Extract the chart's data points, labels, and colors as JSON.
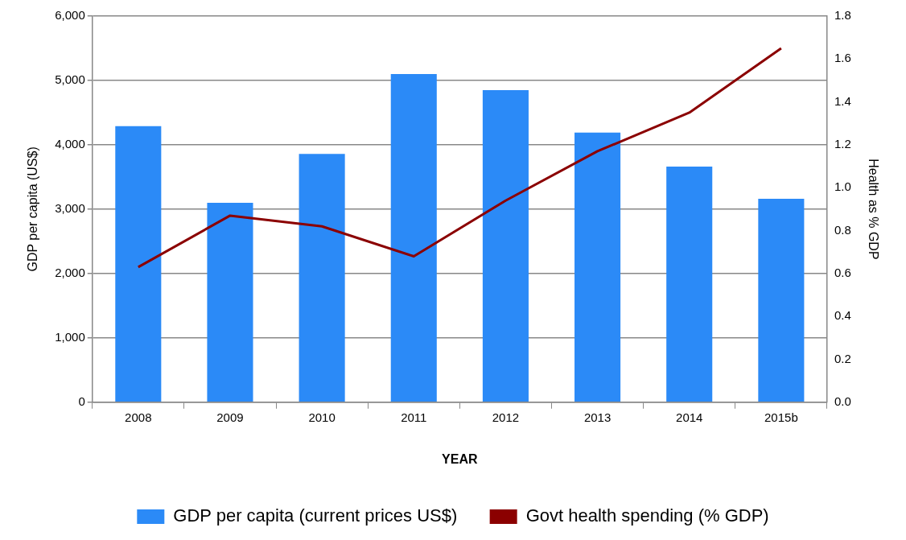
{
  "chart_data": {
    "type": "bar",
    "xlabel": "YEAR",
    "ylabel": "GDP per capita (US$)",
    "y2label": "Health as % GDP",
    "categories": [
      "2008",
      "2009",
      "2010",
      "2011",
      "2012",
      "2013",
      "2014",
      "2015b"
    ],
    "series": [
      {
        "name": "GDP per capita (current prices US$)",
        "color": "#2b8af7",
        "values": [
          4290,
          3100,
          3860,
          5100,
          4850,
          4190,
          3660,
          3160
        ]
      },
      {
        "name": "Govt health spending (% GDP)",
        "type": "line",
        "axis": "y2",
        "color": "#8b0000",
        "marker": "none",
        "values": [
          0.63,
          0.87,
          0.82,
          0.68,
          0.94,
          1.17,
          1.35,
          1.65
        ]
      }
    ],
    "ylim": [
      0,
      6000
    ],
    "yticks": [
      {
        "value": 0,
        "label": "0"
      },
      {
        "value": 1000,
        "label": "1,000"
      },
      {
        "value": 2000,
        "label": "2,000"
      },
      {
        "value": 3000,
        "label": "3,000"
      },
      {
        "value": 4000,
        "label": "4,000"
      },
      {
        "value": 5000,
        "label": "5,000"
      },
      {
        "value": 6000,
        "label": "6,000"
      }
    ],
    "y2lim": [
      0,
      1.8
    ],
    "y2ticks": [
      {
        "value": 0,
        "label": "0.0"
      },
      {
        "value": 0.2,
        "label": "0.2"
      },
      {
        "value": 0.4,
        "label": "0.4"
      },
      {
        "value": 0.6,
        "label": "0.6"
      },
      {
        "value": 0.8,
        "label": "0.8"
      },
      {
        "value": 1,
        "label": "1.0"
      },
      {
        "value": 1.2,
        "label": "1.2"
      },
      {
        "value": 1.4,
        "label": "1.4"
      },
      {
        "value": 1.6,
        "label": "1.6"
      },
      {
        "value": 1.8,
        "label": "1.8"
      }
    ],
    "grid": "y",
    "legend": "bottom"
  }
}
